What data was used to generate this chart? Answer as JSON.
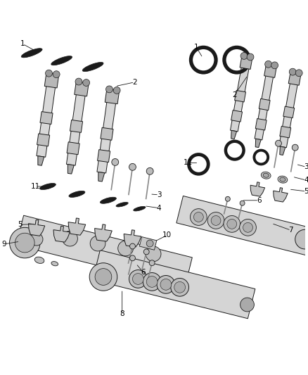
{
  "background_color": "#ffffff",
  "line_color": "#1a1a1a",
  "fig_width": 4.38,
  "fig_height": 5.33,
  "dpi": 100,
  "injector_color": "#d0d0d0",
  "rail_color": "#d8d8d8",
  "dark_color": "#333333",
  "mid_color": "#aaaaaa",
  "label_fontsize": 7.5
}
